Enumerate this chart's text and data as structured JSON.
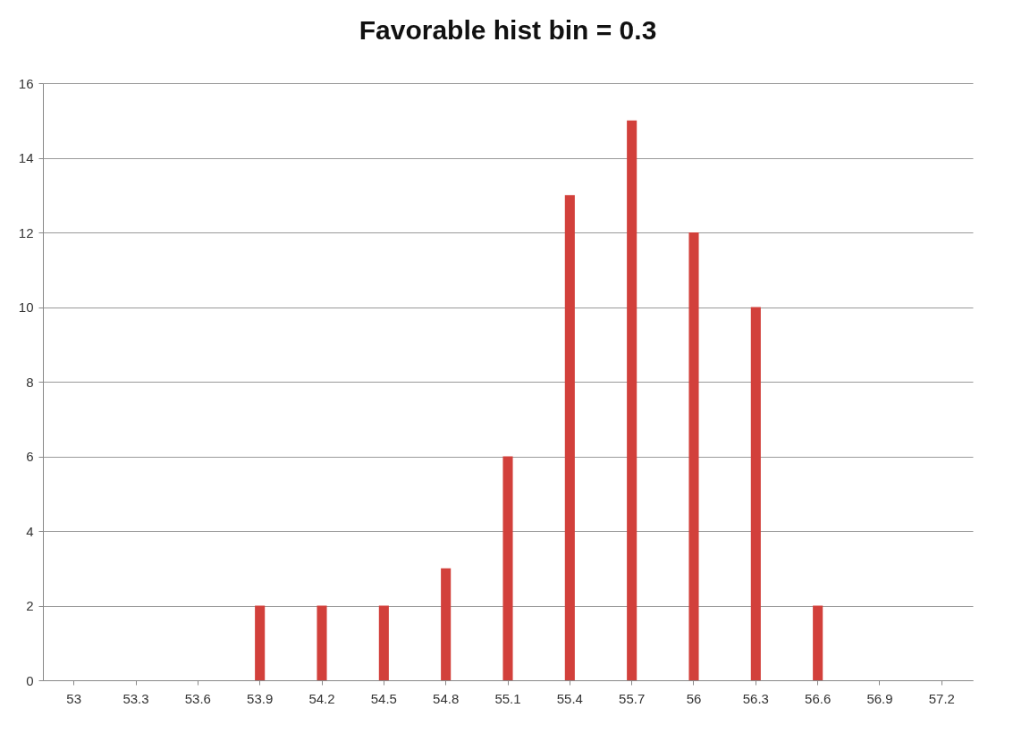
{
  "chart_data": {
    "type": "bar",
    "title": "Favorable hist bin = 0.3",
    "categories": [
      "53",
      "53.3",
      "53.6",
      "53.9",
      "54.2",
      "54.5",
      "54.8",
      "55.1",
      "55.4",
      "55.7",
      "56",
      "56.3",
      "56.6",
      "56.9",
      "57.2"
    ],
    "values": [
      0,
      0,
      0,
      2,
      2,
      2,
      3,
      6,
      13,
      15,
      12,
      10,
      2,
      0,
      0
    ],
    "color": "#d2403b",
    "ylim": [
      0,
      16
    ],
    "yticks": [
      0,
      2,
      4,
      6,
      8,
      10,
      12,
      14,
      16
    ],
    "grid": "y"
  }
}
